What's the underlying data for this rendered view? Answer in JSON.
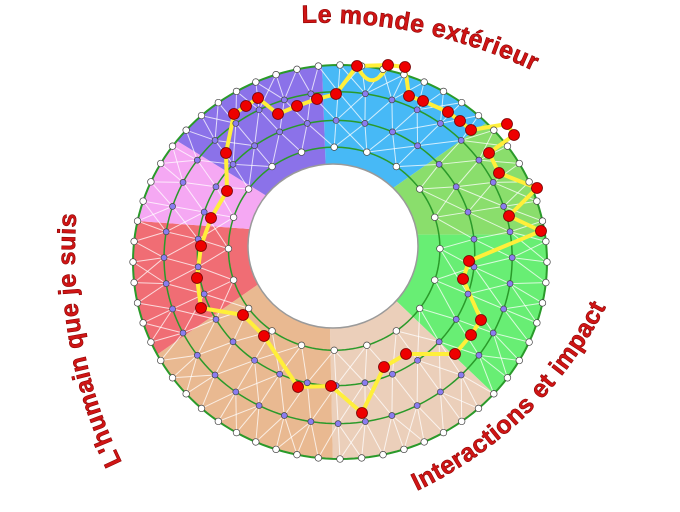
{
  "labels": {
    "top": "Le monde extérieur",
    "left": "L'humain que je suis",
    "bottom_right": "Interactions et impact"
  },
  "colors": {
    "sectors": {
      "blue": "#47b9f6",
      "light_green": "#8ade6c",
      "green": "#68ee74",
      "light_tan": "#ebcfba",
      "tan": "#e9b991",
      "red": "#f06d74",
      "pink": "#f5a8f3",
      "purple": "#8b72e9"
    },
    "ring_lines": "#2a9a2a",
    "path": "#ffef3a",
    "path_nodes": "#ee0000",
    "ring_nodes": "#8a7cf0",
    "edge_nodes": "#ffffff",
    "label_text": "#d01515"
  }
}
